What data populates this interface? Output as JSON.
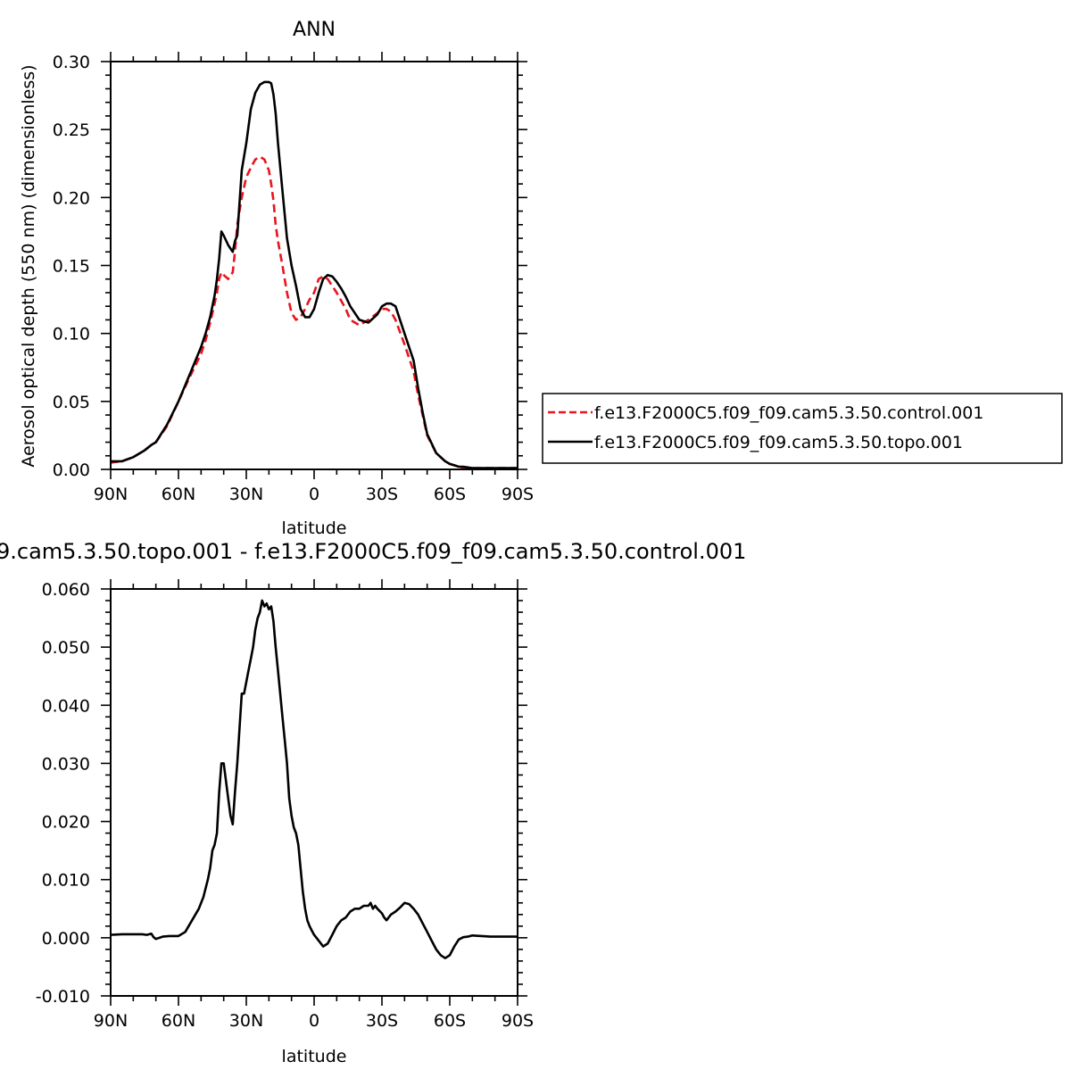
{
  "chart_data": [
    {
      "type": "line",
      "title": "ANN",
      "xlabel": "latitude",
      "ylabel": "Aerosol optical depth (550 nm) (dimensionless)",
      "xlim": [
        90,
        -90
      ],
      "ylim": [
        0,
        0.3
      ],
      "x_ticks": [
        90,
        60,
        30,
        0,
        -30,
        -60,
        -90
      ],
      "x_tick_labels": [
        "90N",
        "60N",
        "30N",
        "0",
        "30S",
        "60S",
        "90S"
      ],
      "y_ticks": [
        0,
        0.05,
        0.1,
        0.15,
        0.2,
        0.25,
        0.3
      ],
      "y_tick_labels": [
        "0.00",
        "0.05",
        "0.10",
        "0.15",
        "0.20",
        "0.25",
        "0.30"
      ],
      "grid": false,
      "legend_position": "right",
      "series": [
        {
          "name": "f.e13.F2000C5.f09_f09.cam5.3.50.control.001",
          "color": "#e8141e",
          "dash": "dashed",
          "x": [
            90,
            85,
            80,
            75,
            72,
            70,
            65,
            60,
            55,
            50,
            48,
            46,
            44,
            43,
            42,
            41,
            40,
            38,
            36,
            35,
            34,
            32,
            30,
            28,
            26,
            24,
            22,
            20,
            19,
            18,
            17,
            16,
            14,
            12,
            10,
            8,
            6,
            4,
            2,
            0,
            -2,
            -4,
            -6,
            -8,
            -10,
            -12,
            -14,
            -16,
            -20,
            -24,
            -28,
            -30,
            -32,
            -34,
            -36,
            -40,
            -44,
            -46,
            -48,
            -50,
            -54,
            -58,
            -60,
            -62,
            -64,
            -66,
            -70,
            -75,
            -80,
            -85,
            -90
          ],
          "y": [
            0.005,
            0.006,
            0.009,
            0.014,
            0.018,
            0.02,
            0.032,
            0.05,
            0.068,
            0.085,
            0.095,
            0.108,
            0.122,
            0.13,
            0.14,
            0.145,
            0.143,
            0.14,
            0.145,
            0.16,
            0.18,
            0.2,
            0.215,
            0.222,
            0.228,
            0.23,
            0.228,
            0.22,
            0.21,
            0.198,
            0.18,
            0.168,
            0.15,
            0.13,
            0.115,
            0.11,
            0.112,
            0.118,
            0.125,
            0.13,
            0.14,
            0.142,
            0.14,
            0.135,
            0.13,
            0.124,
            0.118,
            0.11,
            0.106,
            0.11,
            0.115,
            0.118,
            0.118,
            0.116,
            0.11,
            0.092,
            0.072,
            0.055,
            0.04,
            0.025,
            0.012,
            0.006,
            0.004,
            0.003,
            0.002,
            0.001,
            0.001,
            0.001,
            0.001,
            0.001,
            0.001
          ]
        },
        {
          "name": "f.e13.F2000C5.f09_f09.cam5.3.50.topo.001",
          "color": "#000000",
          "dash": "solid",
          "x": [
            90,
            85,
            80,
            75,
            72,
            70,
            65,
            60,
            55,
            50,
            48,
            46,
            44,
            43,
            42,
            41,
            40,
            38,
            36,
            35,
            34,
            32,
            30,
            28,
            26,
            24,
            22,
            20,
            19,
            18,
            17,
            16,
            14,
            12,
            10,
            8,
            6,
            4,
            2,
            0,
            -2,
            -4,
            -6,
            -8,
            -10,
            -12,
            -14,
            -16,
            -20,
            -24,
            -28,
            -30,
            -32,
            -34,
            -36,
            -40,
            -44,
            -46,
            -48,
            -50,
            -54,
            -58,
            -60,
            -62,
            -64,
            -66,
            -70,
            -75,
            -80,
            -85,
            -90
          ],
          "y": [
            0.006,
            0.006,
            0.009,
            0.014,
            0.018,
            0.02,
            0.033,
            0.05,
            0.07,
            0.09,
            0.1,
            0.112,
            0.128,
            0.14,
            0.155,
            0.175,
            0.172,
            0.165,
            0.16,
            0.168,
            0.172,
            0.22,
            0.24,
            0.265,
            0.277,
            0.283,
            0.285,
            0.285,
            0.284,
            0.276,
            0.262,
            0.24,
            0.205,
            0.17,
            0.15,
            0.135,
            0.118,
            0.112,
            0.112,
            0.118,
            0.13,
            0.14,
            0.143,
            0.142,
            0.138,
            0.133,
            0.127,
            0.12,
            0.11,
            0.108,
            0.114,
            0.12,
            0.122,
            0.122,
            0.12,
            0.1,
            0.08,
            0.06,
            0.042,
            0.026,
            0.012,
            0.006,
            0.004,
            0.003,
            0.002,
            0.002,
            0.001,
            0.001,
            0.001,
            0.001,
            0.001
          ]
        }
      ]
    },
    {
      "type": "line",
      "title": "9.cam5.3.50.topo.001 - f.e13.F2000C5.f09_f09.cam5.3.50.control.001",
      "xlabel": "latitude",
      "ylabel": "",
      "xlim": [
        90,
        -90
      ],
      "ylim": [
        -0.01,
        0.06
      ],
      "x_ticks": [
        90,
        60,
        30,
        0,
        -30,
        -60,
        -90
      ],
      "x_tick_labels": [
        "90N",
        "60N",
        "30N",
        "0",
        "30S",
        "60S",
        "90S"
      ],
      "y_ticks": [
        -0.01,
        0,
        0.01,
        0.02,
        0.03,
        0.04,
        0.05,
        0.06
      ],
      "y_tick_labels": [
        "-0.010",
        "0.000",
        "0.010",
        "0.020",
        "0.030",
        "0.040",
        "0.050",
        "0.060"
      ],
      "grid": false,
      "series": [
        {
          "color": "#000000",
          "dash": "solid",
          "x": [
            90,
            85,
            80,
            76,
            74,
            72,
            71,
            70,
            67,
            64,
            60,
            57,
            54,
            51,
            49,
            47,
            46,
            45,
            44,
            43,
            42,
            41,
            40,
            39,
            38,
            37,
            36,
            35,
            34,
            33,
            32,
            31,
            30,
            29,
            28,
            27,
            26,
            25,
            24,
            23,
            22,
            21,
            20,
            19,
            18,
            17,
            16,
            15,
            14,
            13,
            12,
            11,
            10,
            9,
            8,
            7,
            6,
            5,
            4,
            3,
            2,
            1,
            0,
            -2,
            -4,
            -6,
            -8,
            -10,
            -12,
            -14,
            -16,
            -18,
            -20,
            -22,
            -24,
            -25,
            -26,
            -27,
            -28,
            -30,
            -31,
            -32,
            -34,
            -36,
            -38,
            -40,
            -42,
            -44,
            -46,
            -48,
            -50,
            -52,
            -54,
            -56,
            -58,
            -60,
            -62,
            -64,
            -66,
            -68,
            -70,
            -74,
            -78,
            -82,
            -86,
            -90
          ],
          "y": [
            0.0005,
            0.0006,
            0.0006,
            0.0006,
            0.0005,
            0.0007,
            0.0001,
            -0.0002,
            0.0002,
            0.0003,
            0.0003,
            0.001,
            0.003,
            0.005,
            0.007,
            0.01,
            0.012,
            0.015,
            0.016,
            0.018,
            0.025,
            0.03,
            0.03,
            0.027,
            0.024,
            0.021,
            0.0195,
            0.025,
            0.03,
            0.036,
            0.042,
            0.042,
            0.044,
            0.046,
            0.048,
            0.05,
            0.053,
            0.055,
            0.056,
            0.058,
            0.057,
            0.0575,
            0.0565,
            0.057,
            0.0545,
            0.05,
            0.046,
            0.042,
            0.038,
            0.034,
            0.03,
            0.024,
            0.021,
            0.019,
            0.018,
            0.016,
            0.012,
            0.008,
            0.005,
            0.003,
            0.002,
            0.0012,
            0.0005,
            -0.0005,
            -0.0015,
            -0.001,
            0.0005,
            0.002,
            0.003,
            0.0035,
            0.0045,
            0.005,
            0.005,
            0.0055,
            0.0055,
            0.006,
            0.005,
            0.0055,
            0.005,
            0.0042,
            0.0035,
            0.003,
            0.004,
            0.0045,
            0.0052,
            0.006,
            0.0058,
            0.005,
            0.004,
            0.0025,
            0.001,
            -0.0005,
            -0.002,
            -0.003,
            -0.0035,
            -0.003,
            -0.0015,
            -0.0003,
            0.0001,
            0.0002,
            0.0004,
            0.0003,
            0.0002,
            0.0002,
            0.0002,
            0.0002
          ]
        }
      ]
    }
  ]
}
